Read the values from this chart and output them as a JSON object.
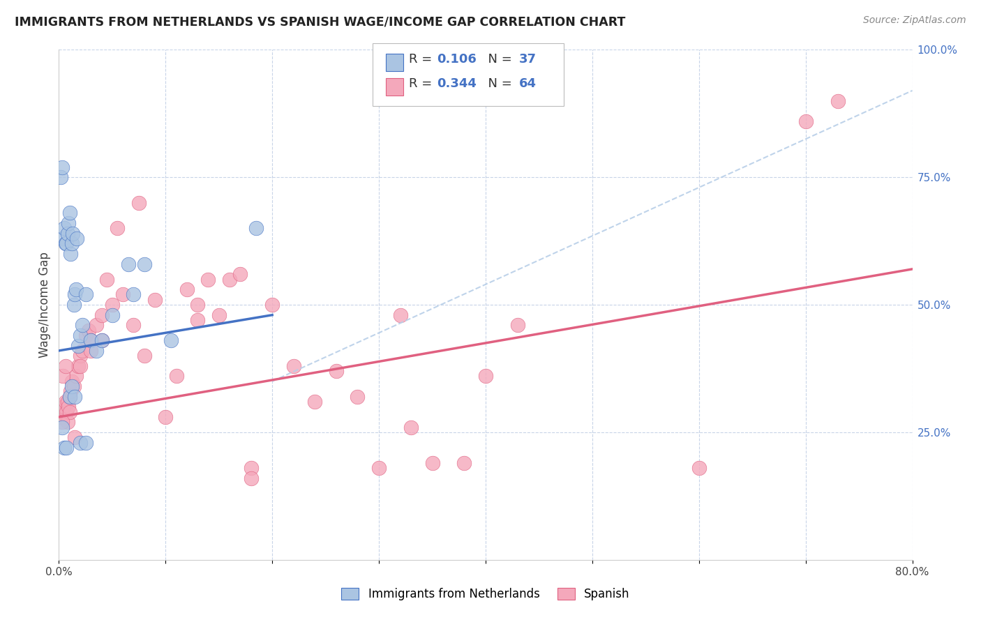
{
  "title": "IMMIGRANTS FROM NETHERLANDS VS SPANISH WAGE/INCOME GAP CORRELATION CHART",
  "source": "Source: ZipAtlas.com",
  "ylabel": "Wage/Income Gap",
  "legend_label1": "Immigrants from Netherlands",
  "legend_label2": "Spanish",
  "R1": 0.106,
  "N1": 37,
  "R2": 0.344,
  "N2": 64,
  "xlim": [
    0.0,
    80.0
  ],
  "ylim": [
    0.0,
    100.0
  ],
  "color_blue": "#aac4e2",
  "color_pink": "#f4a8bb",
  "line_blue": "#4472C4",
  "line_pink": "#e06080",
  "line_dashed_color": "#b8cfe8",
  "background": "#ffffff",
  "grid_color": "#c8d4e8",
  "blue_line_x": [
    0,
    20
  ],
  "blue_line_y": [
    41,
    48
  ],
  "pink_line_x": [
    0,
    80
  ],
  "pink_line_y": [
    28,
    57
  ],
  "dash_line_x": [
    20,
    80
  ],
  "dash_line_y": [
    35,
    92
  ],
  "netherlands_x": [
    0.2,
    0.3,
    0.4,
    0.5,
    0.6,
    0.7,
    0.8,
    0.9,
    1.0,
    1.1,
    1.2,
    1.3,
    1.4,
    1.5,
    1.6,
    1.7,
    1.8,
    2.0,
    2.2,
    2.5,
    3.0,
    3.5,
    4.0,
    5.0,
    6.5,
    7.0,
    8.0,
    0.3,
    0.5,
    0.7,
    1.0,
    1.2,
    1.5,
    2.0,
    2.5,
    10.5,
    18.5
  ],
  "netherlands_y": [
    75,
    77,
    63,
    65,
    62,
    62,
    64,
    66,
    68,
    60,
    62,
    64,
    50,
    52,
    53,
    63,
    42,
    44,
    46,
    52,
    43,
    41,
    43,
    48,
    58,
    52,
    58,
    26,
    22,
    22,
    32,
    34,
    32,
    23,
    23,
    43,
    65
  ],
  "spanish_x": [
    0.2,
    0.3,
    0.4,
    0.5,
    0.6,
    0.7,
    0.8,
    0.9,
    1.0,
    1.1,
    1.2,
    1.4,
    1.6,
    1.8,
    2.0,
    2.2,
    2.5,
    2.8,
    3.0,
    3.5,
    4.0,
    4.5,
    5.0,
    6.0,
    7.0,
    8.0,
    9.0,
    10.0,
    11.0,
    12.0,
    13.0,
    14.0,
    15.0,
    16.0,
    17.0,
    18.0,
    20.0,
    22.0,
    24.0,
    26.0,
    28.0,
    30.0,
    32.0,
    33.0,
    35.0,
    38.0,
    40.0,
    43.0,
    60.0,
    70.0,
    73.0,
    0.4,
    0.6,
    0.8,
    1.0,
    1.5,
    2.0,
    3.0,
    4.0,
    7.5,
    13.0,
    18.0,
    0.3,
    5.5
  ],
  "spanish_y": [
    28,
    29,
    30,
    30,
    31,
    29,
    31,
    30,
    32,
    33,
    35,
    34,
    36,
    38,
    40,
    41,
    44,
    45,
    43,
    46,
    48,
    55,
    50,
    52,
    46,
    40,
    51,
    28,
    36,
    53,
    47,
    55,
    48,
    55,
    56,
    18,
    50,
    38,
    31,
    37,
    32,
    18,
    48,
    26,
    19,
    19,
    36,
    46,
    18,
    86,
    90,
    36,
    38,
    27,
    29,
    24,
    38,
    41,
    43,
    70,
    50,
    16,
    27,
    65
  ]
}
